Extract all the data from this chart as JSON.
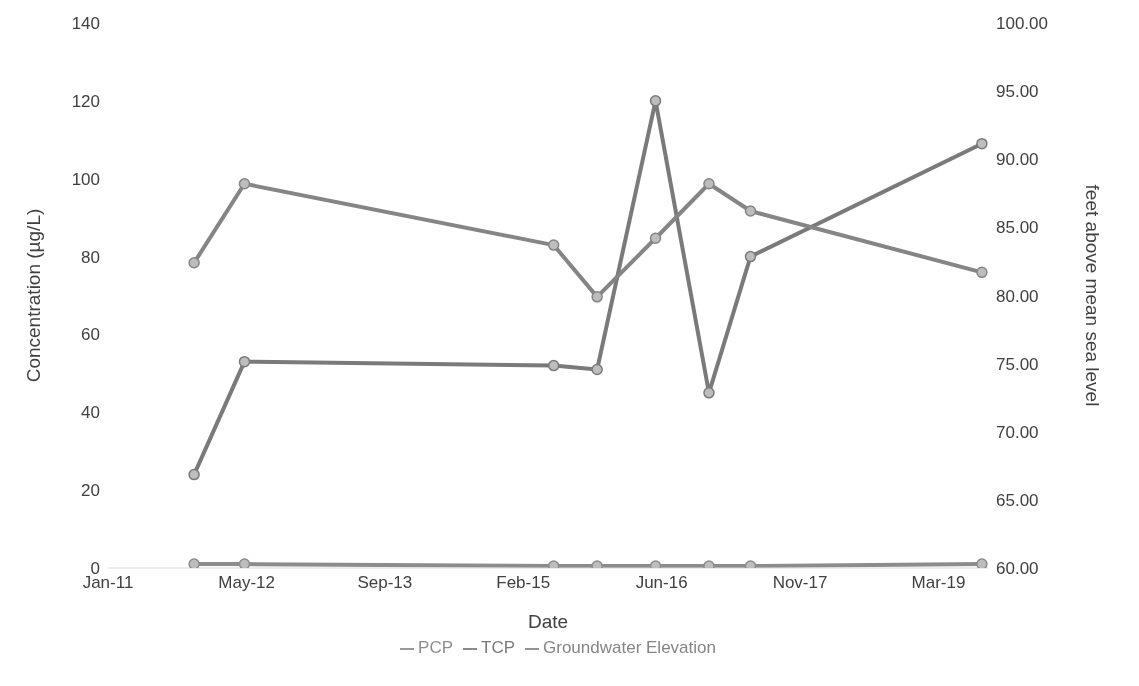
{
  "chart_data": {
    "type": "line",
    "xlabel": "Date",
    "ylabel": "Concentration (µg/L)",
    "y2label": "feet above mean sea level",
    "x": [
      "2011-11-08",
      "2012-05-08",
      "2015-05-30",
      "2015-11-03",
      "2016-06-01",
      "2016-12-11",
      "2017-05-10",
      "2019-08-24"
    ],
    "series": [
      {
        "name": "PCP",
        "color": "#8c8c8c",
        "values": [
          1,
          1,
          0.5,
          0.5,
          0.5,
          0.5,
          0.5,
          1
        ]
      },
      {
        "name": "TCP",
        "color": "#7a7a7a",
        "values": [
          24,
          53,
          52,
          51,
          120,
          45,
          80,
          109
        ]
      },
      {
        "name": "Groundwater Elevation",
        "color": "#858585",
        "axis": "y2",
        "values": [
          82.4,
          88.2,
          83.7,
          79.9,
          84.2,
          88.2,
          86.2,
          81.7
        ]
      }
    ],
    "xlim": [
      "2011-01-01",
      "2019-09-15"
    ],
    "xticks": [
      {
        "value": "2011-01-01",
        "label": "Jan-11"
      },
      {
        "value": "2012-05-16",
        "label": "May-12"
      },
      {
        "value": "2013-09-27",
        "label": "Sep-13"
      },
      {
        "value": "2015-02-09",
        "label": "Feb-15"
      },
      {
        "value": "2016-06-23",
        "label": "Jun-16"
      },
      {
        "value": "2017-11-05",
        "label": "Nov-17"
      },
      {
        "value": "2019-03-20",
        "label": "Mar-19"
      }
    ],
    "ylim": [
      0,
      140
    ],
    "yticks": [
      0,
      20,
      40,
      60,
      80,
      100,
      120,
      140
    ],
    "y2lim": [
      60,
      100
    ],
    "y2ticks": [
      {
        "value": 60,
        "label": "60.00"
      },
      {
        "value": 65,
        "label": "65.00"
      },
      {
        "value": 70,
        "label": "70.00"
      },
      {
        "value": 75,
        "label": "75.00"
      },
      {
        "value": 80,
        "label": "80.00"
      },
      {
        "value": 85,
        "label": "85.00"
      },
      {
        "value": 90,
        "label": "90.00"
      },
      {
        "value": 95,
        "label": "95.00"
      },
      {
        "value": 100,
        "label": "100.00"
      }
    ],
    "grid": false,
    "legend": "bottom",
    "marker": "circle",
    "line_style": "solid"
  }
}
